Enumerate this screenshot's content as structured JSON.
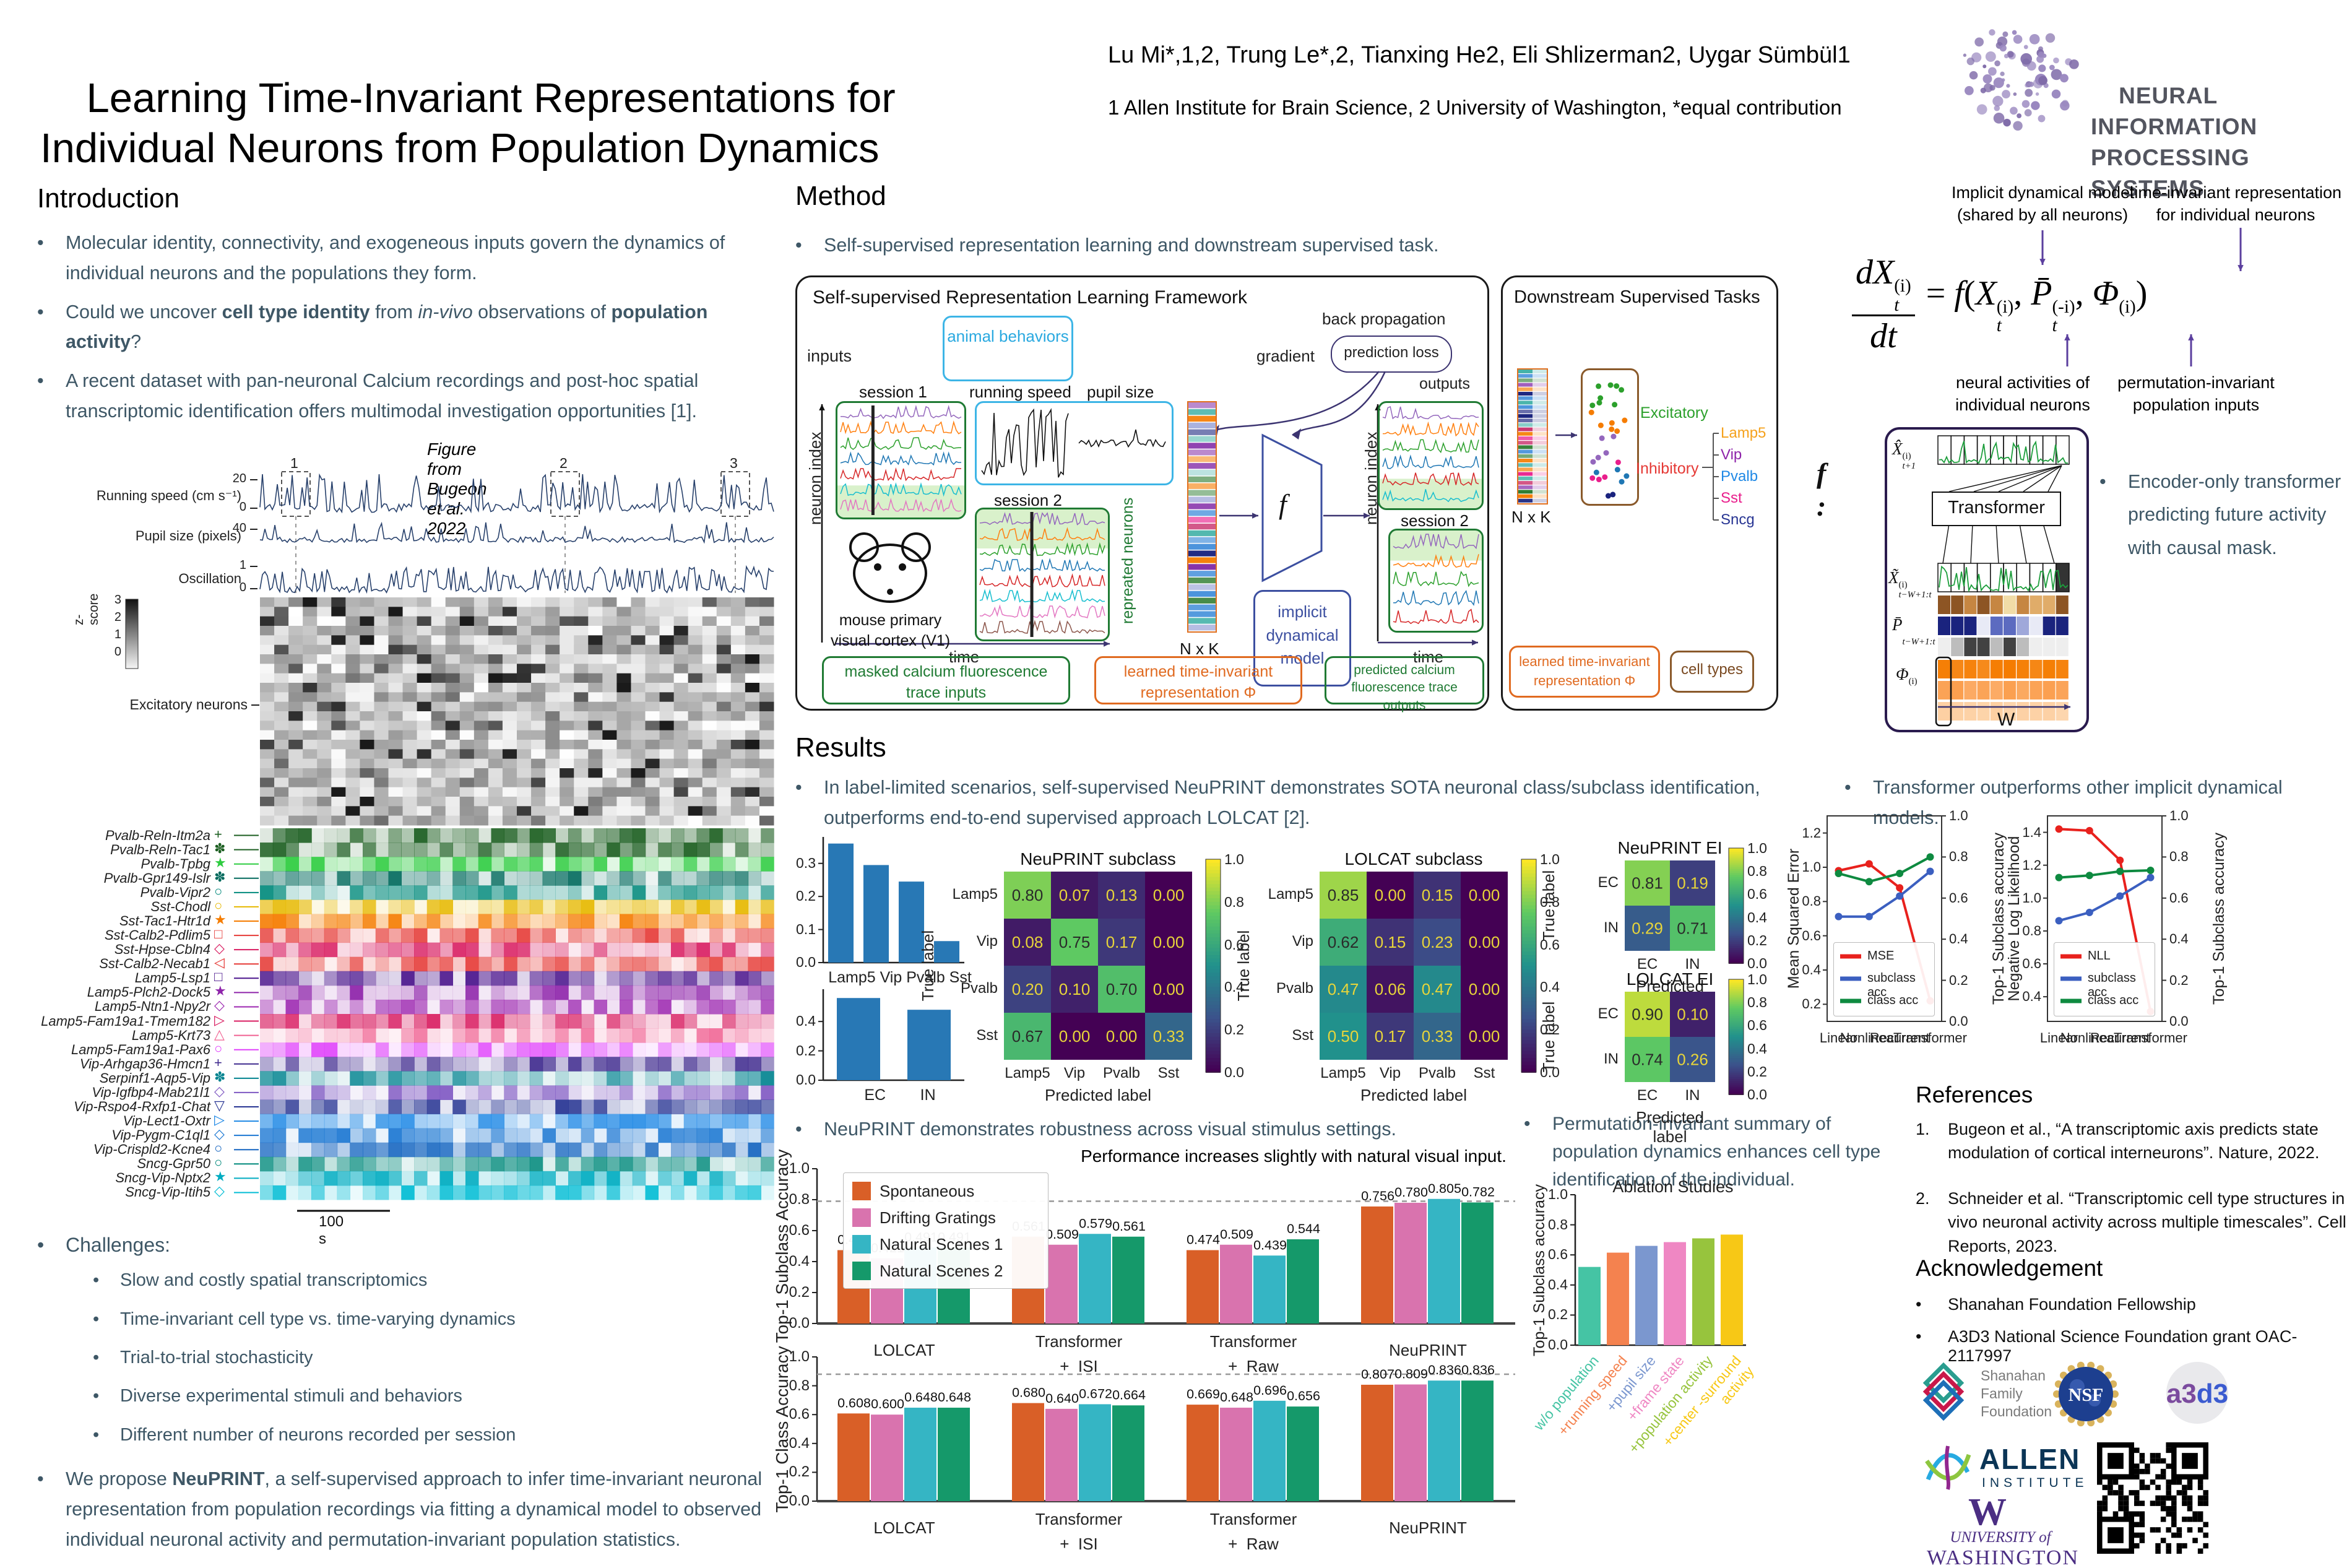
{
  "header": {
    "title_line1": "Learning Time-Invariant Representations for",
    "title_line2": "Individual Neurons from Population Dynamics",
    "authors": "Lu Mi*,1,2, Trung Le*,2, Tianxing He2, Eli Shlizerman2, Uygar Sümbül1",
    "affiliations": "1 Allen Institute for Brain Science, 2 University of Washington, *equal contribution",
    "logo_line1": "NEURAL INFORMATION",
    "logo_line2": "PROCESSING SYSTEMS"
  },
  "intro": {
    "heading": "Introduction",
    "bullets": [
      [
        {
          "t": "Molecular identity, connectivity, and exogeneous inputs govern the dynamics of individual neurons and the populations they form."
        }
      ],
      [
        {
          "t": "Could we uncover "
        },
        {
          "t": "cell type identity",
          "b": true
        },
        {
          "t": " from "
        },
        {
          "t": "in-vivo",
          "i": true
        },
        {
          "t": " observations of "
        },
        {
          "t": "population activity",
          "b": true
        },
        {
          "t": "?"
        }
      ],
      [
        {
          "t": "A recent dataset with pan-neuronal Calcium recordings and post-hoc spatial transcriptomic identification offers multimodal investigation opportunities [1]."
        }
      ]
    ],
    "figure": {
      "caption": "Figure from Bugeon et al. 2022",
      "markers": [
        "1",
        "2",
        "3"
      ],
      "traces": [
        {
          "label": "Running speed (cm s⁻¹)",
          "ticks": [
            "20",
            "0"
          ]
        },
        {
          "label": "Pupil size (pixels)",
          "ticks": [
            "40"
          ]
        },
        {
          "label": "Oscillation",
          "ticks": [
            "1",
            "0"
          ]
        }
      ],
      "zscore": {
        "label": "z-score",
        "ticks": [
          "3",
          "2",
          "1",
          "0"
        ]
      },
      "excitatory_label": "Excitatory neurons",
      "scalebar": "100 s",
      "genes": [
        {
          "name": "Pvalb-Reln-Itm2a",
          "color": "#1b5e20",
          "glyph": "+"
        },
        {
          "name": "Pvalb-Reln-Tac1",
          "color": "#1b5e20",
          "glyph": "✽"
        },
        {
          "name": "Pvalb-Tpbg",
          "color": "#2ecc40",
          "glyph": "★"
        },
        {
          "name": "Pvalb-Gpr149-Islr",
          "color": "#00695c",
          "glyph": "✽"
        },
        {
          "name": "Pvalb-Vipr2",
          "color": "#00897b",
          "glyph": "○"
        },
        {
          "name": "Sst-Chodl",
          "color": "#e6b800",
          "glyph": "○"
        },
        {
          "name": "Sst-Tac1-Htr1d",
          "color": "#f57c00",
          "glyph": "★"
        },
        {
          "name": "Sst-Calb2-Pdlim5",
          "color": "#e53935",
          "glyph": "□"
        },
        {
          "name": "Sst-Hpse-Cbln4",
          "color": "#d81b60",
          "glyph": "◇"
        },
        {
          "name": "Sst-Calb2-Necab1",
          "color": "#e53935",
          "glyph": "◁"
        },
        {
          "name": "Lamp5-Lsp1",
          "color": "#4a148c",
          "glyph": "□"
        },
        {
          "name": "Lamp5-Plch2-Dock5",
          "color": "#8e24aa",
          "glyph": "★"
        },
        {
          "name": "Lamp5-Ntn1-Npy2r",
          "color": "#9c27b0",
          "glyph": "◇"
        },
        {
          "name": "Lamp5-Fam19a1-Tmem182",
          "color": "#d81b60",
          "glyph": "▷"
        },
        {
          "name": "Lamp5-Krt73",
          "color": "#f06292",
          "glyph": "△"
        },
        {
          "name": "Lamp5-Fam19a1-Pax6",
          "color": "#e040fb",
          "glyph": "○"
        },
        {
          "name": "Vip-Arhgap36-Hmcn1",
          "color": "#3f2a8e",
          "glyph": "+"
        },
        {
          "name": "Serpinf1-Aqp5-Vip",
          "color": "#00838f",
          "glyph": "✽"
        },
        {
          "name": "Vip-Igfbp4-Mab21l1",
          "color": "#7e57c2",
          "glyph": "◇"
        },
        {
          "name": "Vip-Rspo4-Rxfp1-Chat",
          "color": "#283593",
          "glyph": "▽"
        },
        {
          "name": "Vip-Lect1-Oxtr",
          "color": "#1e88e5",
          "glyph": "▷"
        },
        {
          "name": "Vip-Pygm-C1ql1",
          "color": "#1976d2",
          "glyph": "◇"
        },
        {
          "name": "Vip-Crispld2-Kcne4",
          "color": "#1565c0",
          "glyph": "○"
        },
        {
          "name": "Sncg-Gpr50",
          "color": "#00897b",
          "glyph": "○"
        },
        {
          "name": "Sncg-Vip-Nptx2",
          "color": "#00acc1",
          "glyph": "★"
        },
        {
          "name": "Sncg-Vip-Itih5",
          "color": "#00bcd4",
          "glyph": "◇"
        }
      ]
    },
    "challenges": {
      "label": "Challenges:",
      "items": [
        "Slow and costly spatial transcriptomics",
        "Time-invariant cell type vs. time-varying dynamics",
        "Trial-to-trial stochasticity",
        "Diverse experimental stimuli and behaviors",
        "Different number of neurons recorded per session"
      ]
    },
    "proposal": [
      {
        "t": "We propose "
      },
      {
        "t": "NeuPRINT",
        "b": true
      },
      {
        "t": ", a self-supervised approach to infer time-invariant neuronal representation from population recordings via fitting a dynamical model to observed individual neuronal activity and permutation-invariant population statistics."
      }
    ]
  },
  "method": {
    "heading": "Method",
    "bullet": [
      {
        "t": "Self-supervised representation learning and downstream supervised task."
      }
    ],
    "p1": {
      "title": "Self-supervised Representation Learning Framework",
      "inputs": "inputs",
      "outputs": "outputs",
      "gradient": "gradient",
      "back_propagation": "back propagation",
      "prediction_loss": "prediction loss",
      "animal_behaviors": "animal behaviors",
      "session1": "session 1",
      "session2": "session 2",
      "running_speed": "running speed",
      "pupil_size": "pupil size",
      "repeated_neurons": "repreated neurons",
      "neuron_index": "neuron index",
      "time": "time",
      "mouse1": "mouse primary",
      "mouse2": "visual cortex (V1)",
      "nxk": "N x K",
      "f": "f",
      "idm": "implicit dynamical model",
      "masked": "masked calcium fluorescence trace inputs",
      "learned": "learned time-invariant representation Φ",
      "predicted": "predicted calcium fluorescence trace outputs"
    },
    "p2": {
      "title": "Downstream Supervised Tasks",
      "nxk": "N x K",
      "excitatory": "Excitatory",
      "inhibitory": "Inhibitory",
      "cells": [
        {
          "name": "Lamp5",
          "color": "#f5a11c"
        },
        {
          "name": "Vip",
          "color": "#8e24aa"
        },
        {
          "name": "Pvalb",
          "color": "#1e88e5"
        },
        {
          "name": "Sst",
          "color": "#e91e8c"
        },
        {
          "name": "Sncg",
          "color": "#283593"
        }
      ],
      "learned": "learned time-invariant representation Φ",
      "cell_types": "cell types"
    }
  },
  "equation": {
    "ann1a": "Implicit dynamical model",
    "ann1b": "(shared by all neurons)",
    "ann2a": "time-invariant representation",
    "ann2b": "for individual neurons",
    "ann3a": "neural activities of",
    "ann3b": "individual neurons",
    "ann4a": "permutation-invariant",
    "ann4b": "population inputs",
    "num": "dX",
    "num_sup": "(i)",
    "num_sub": "t",
    "den": "dt",
    "rhs_f": "f",
    "x_base": "X",
    "x_sup": "(i)",
    "x_sub": "t",
    "p_base": "P̄",
    "p_sup": "(-i)",
    "p_sub": "t",
    "phi_base": "Φ",
    "phi_sup": "(i)"
  },
  "transformer_panel": {
    "f_label": "f :",
    "out_base": "X̂",
    "out_sup": "(i)",
    "out_sub": "t+1",
    "in_base": "X̃",
    "in_sup": "(i)",
    "in_sub": "t−W+1:t",
    "pop_base": "P̄",
    "pop_sub": "t−W+1:t",
    "phi_base": "Φ",
    "phi_sup": "(i)",
    "box": "Transformer",
    "w": "W",
    "bullet": [
      {
        "t": "Encoder-only transformer predicting future activity with causal mask."
      }
    ]
  },
  "results": {
    "heading": "Results",
    "bullet1": [
      {
        "t": "In label-limited scenarios, self-supervised NeuPRINT demonstrates SOTA neuronal class/subclass identification, outperforms end-to-end supervised approach LOLCAT [2]."
      }
    ],
    "bullet2": [
      {
        "t": "Transformer outperforms other implicit dynamical models."
      }
    ],
    "bullet3": [
      {
        "t": "NeuPRINT demonstrates robustness across visual stimulus settings."
      }
    ],
    "bullet4": [
      {
        "t": "Permutation-invariant summary of population dynamics enhances cell type identification of the individual."
      }
    ]
  },
  "chart_data": [
    {
      "id": "subclass_fraction",
      "type": "bar",
      "categories": [
        "Lamp5",
        "Vip",
        "Pvalb",
        "Sst"
      ],
      "values": [
        0.36,
        0.295,
        0.245,
        0.065
      ],
      "yticks": [
        0.0,
        0.1,
        0.2,
        0.3
      ],
      "ylim": [
        0,
        0.38
      ],
      "bar_color": "#2878b5"
    },
    {
      "id": "ei_fraction",
      "type": "bar",
      "categories": [
        "EC",
        "IN"
      ],
      "values": [
        0.56,
        0.48
      ],
      "yticks": [
        0.0,
        0.2,
        0.4
      ],
      "ylim": [
        0,
        0.62
      ],
      "bar_color": "#2878b5"
    },
    {
      "id": "neuprint_subclass",
      "type": "heatmap",
      "title": "NeuPRINT subclass",
      "labels": [
        "Lamp5",
        "Vip",
        "Pvalb",
        "Sst"
      ],
      "matrix": [
        [
          0.8,
          0.07,
          0.13,
          0.0
        ],
        [
          0.08,
          0.75,
          0.17,
          0.0
        ],
        [
          0.2,
          0.1,
          0.7,
          0.0
        ],
        [
          0.67,
          0.0,
          0.0,
          0.33
        ]
      ],
      "xlabel": "Predicted label",
      "ylabel": "True label",
      "colorbar_ticks": [
        "1.0",
        "0.8",
        "0.6",
        "0.4",
        "0.2",
        "0.0"
      ]
    },
    {
      "id": "lolcat_subclass",
      "type": "heatmap",
      "title": "LOLCAT subclass",
      "labels": [
        "Lamp5",
        "Vip",
        "Pvalb",
        "Sst"
      ],
      "matrix": [
        [
          0.85,
          0.0,
          0.15,
          0.0
        ],
        [
          0.62,
          0.15,
          0.23,
          0.0
        ],
        [
          0.47,
          0.06,
          0.47,
          0.0
        ],
        [
          0.5,
          0.17,
          0.33,
          0.0
        ]
      ],
      "xlabel": "Predicted label",
      "ylabel": "True label",
      "colorbar_ticks": [
        "1.0",
        "0.8",
        "0.6",
        "0.4",
        "0.2",
        "0.0"
      ]
    },
    {
      "id": "neuprint_ei",
      "type": "heatmap",
      "title": "NeuPRINT EI",
      "labels": [
        "EC",
        "IN"
      ],
      "matrix": [
        [
          0.81,
          0.19
        ],
        [
          0.29,
          0.71
        ]
      ],
      "xlabel": "Predicted label",
      "ylabel": "True label",
      "colorbar_ticks": [
        "1.0",
        "0.8",
        "0.6",
        "0.4",
        "0.2",
        "0.0"
      ]
    },
    {
      "id": "lolcat_ei",
      "type": "heatmap",
      "title": "LOLCAT EI",
      "labels": [
        "EC",
        "IN"
      ],
      "matrix": [
        [
          0.9,
          0.1
        ],
        [
          0.74,
          0.26
        ]
      ],
      "xlabel": "Predicted label",
      "ylabel": "True label",
      "colorbar_ticks": [
        "1.0",
        "0.8",
        "0.6",
        "0.4",
        "0.2",
        "0.0"
      ]
    },
    {
      "id": "mse_models",
      "type": "line",
      "categories": [
        "Linear",
        "Nonlinear",
        "Recurrent",
        "Transformer"
      ],
      "left_label": "Mean Squared Error",
      "right_label": "Top-1 Subclass accuracy",
      "left_ticks": [
        0.2,
        0.4,
        0.6,
        0.8,
        1.0,
        1.2
      ],
      "left_ylim": [
        0.1,
        1.3
      ],
      "right_ticks": [
        0.0,
        0.2,
        0.4,
        0.6,
        0.8,
        1.0
      ],
      "right_ylim": [
        0,
        1
      ],
      "series": [
        {
          "name": "MSE",
          "axis": "left",
          "color": "#e8211d",
          "values": [
            0.98,
            1.02,
            0.88,
            0.22
          ]
        },
        {
          "name": "subclass acc",
          "axis": "right",
          "color": "#3b5fc0",
          "values": [
            0.51,
            0.51,
            0.61,
            0.73
          ]
        },
        {
          "name": "class acc",
          "axis": "right",
          "color": "#0e8a40",
          "values": [
            0.72,
            0.68,
            0.72,
            0.8
          ]
        }
      ]
    },
    {
      "id": "nll_models",
      "type": "line",
      "categories": [
        "Linear",
        "Nonlinear",
        "Recurrent",
        "Transformer"
      ],
      "left_label": "Negative Log Likelihood",
      "right_label": "Top-1 Subclass accuracy",
      "left_ticks": [
        0.4,
        0.6,
        0.8,
        1.0,
        1.2,
        1.4
      ],
      "left_ylim": [
        0.25,
        1.5
      ],
      "right_ticks": [
        0.0,
        0.2,
        0.4,
        0.6,
        0.8,
        1.0
      ],
      "right_ylim": [
        0,
        1
      ],
      "series": [
        {
          "name": "NLL",
          "axis": "left",
          "color": "#e8211d",
          "values": [
            1.42,
            1.41,
            1.23,
            0.31
          ]
        },
        {
          "name": "subclass acc",
          "axis": "right",
          "color": "#3b5fc0",
          "values": [
            0.49,
            0.53,
            0.61,
            0.7
          ]
        },
        {
          "name": "class acc",
          "axis": "right",
          "color": "#0e8a40",
          "values": [
            0.7,
            0.71,
            0.73,
            0.735
          ]
        }
      ]
    },
    {
      "id": "subclass_accuracy",
      "type": "grouped",
      "ylabel": "Top-1 Subclass Accuracy",
      "title": "Performance increases slightly with natural visual input.",
      "groups": [
        [
          "LOLCAT"
        ],
        [
          "Transformer",
          "+  ISI"
        ],
        [
          "Transformer",
          "+  Raw"
        ],
        [
          "NeuPRINT"
        ]
      ],
      "yticks": [
        0.0,
        0.2,
        0.4,
        0.6,
        0.8,
        1.0
      ],
      "hline": 0.79,
      "legend": true,
      "series": [
        {
          "name": "Spontaneous",
          "color": "#d95f27",
          "values": [
            0.474,
            0.561,
            0.474,
            0.756
          ]
        },
        {
          "name": "Drifting Gratings",
          "color": "#d973ae",
          "values": [
            0.421,
            0.509,
            0.509,
            0.78
          ]
        },
        {
          "name": "Natural Scenes 1",
          "color": "#35b5c4",
          "values": [
            0.491,
            0.579,
            0.439,
            0.805
          ]
        },
        {
          "name": "Natural Scenes 2",
          "color": "#15996a",
          "values": [
            0.491,
            0.561,
            0.544,
            0.782
          ]
        }
      ]
    },
    {
      "id": "class_accuracy",
      "type": "grouped",
      "ylabel": "Top-1 Class Accuracy",
      "title": "",
      "groups": [
        [
          "LOLCAT"
        ],
        [
          "Transformer",
          "+  ISI"
        ],
        [
          "Transformer",
          "+  Raw"
        ],
        [
          "NeuPRINT"
        ]
      ],
      "yticks": [
        0.0,
        0.2,
        0.4,
        0.6,
        0.8,
        1.0
      ],
      "hline": 0.88,
      "legend": false,
      "series": [
        {
          "name": "Spontaneous",
          "color": "#d95f27",
          "values": [
            0.608,
            0.68,
            0.669,
            0.807
          ]
        },
        {
          "name": "Drifting Gratings",
          "color": "#d973ae",
          "values": [
            0.6,
            0.64,
            0.648,
            0.809
          ]
        },
        {
          "name": "Natural Scenes 1",
          "color": "#35b5c4",
          "values": [
            0.648,
            0.672,
            0.696,
            0.836
          ]
        },
        {
          "name": "Natural Scenes 2",
          "color": "#15996a",
          "values": [
            0.648,
            0.664,
            0.656,
            0.836
          ]
        }
      ]
    },
    {
      "id": "ablation",
      "type": "bar",
      "title": "Ablation Studies",
      "ylabel": "Top-1 Subclass accuracy",
      "categories": [
        "w/o population",
        "+running speed",
        "+pupil size",
        "+frame state",
        "+population activity",
        "+center -surround activity"
      ],
      "values": [
        0.52,
        0.615,
        0.66,
        0.685,
        0.71,
        0.735
      ],
      "colors": [
        "#45c4a4",
        "#f4824f",
        "#7b97cf",
        "#ef87c3",
        "#97c43d",
        "#f7c816"
      ],
      "yticks": [
        0.0,
        0.2,
        0.4,
        0.6,
        0.8,
        1.0
      ],
      "ylim": [
        0,
        1.0
      ],
      "rotate_labels": true
    }
  ],
  "references": {
    "heading": "References",
    "items": [
      "Bugeon et al., “A transcriptomic axis predicts state modulation of cortical interneurons”. Nature, 2022.",
      "Schneider et al. “Transcriptomic cell type structures in vivo neuronal activity across multiple timescales”. Cell Reports, 2023."
    ],
    "ack_heading": "Acknowledgement",
    "ack_items": [
      "Shanahan Foundation Fellowship",
      "A3D3 National Science Foundation grant OAC-2117997"
    ]
  },
  "logos": {
    "shanahan": [
      "Shanahan",
      "Family",
      "Foundation"
    ],
    "nsf": "NSF",
    "a3d3": "a3d3",
    "allen1": "ALLEN",
    "allen2": "INSTITUTE",
    "uw_w": "W",
    "uw1": "UNIVERSITY of",
    "uw2": "WASHINGTON"
  }
}
